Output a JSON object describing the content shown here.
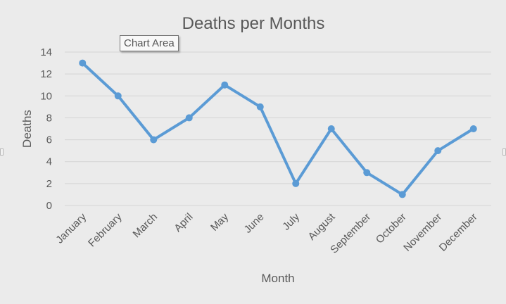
{
  "tooltip": "Chart Area",
  "colors": {
    "series": "#5b9bd5",
    "background": "#ebebeb",
    "grid": "#d4d4d4",
    "text": "#595959",
    "title": "#595959"
  },
  "chart_data": {
    "type": "line",
    "title": "Deaths per Months",
    "xlabel": "Month",
    "ylabel": "Deaths",
    "categories": [
      "January",
      "February",
      "March",
      "April",
      "May",
      "June",
      "July",
      "August",
      "September",
      "October",
      "November",
      "December"
    ],
    "series": [
      {
        "values": [
          13,
          10,
          6,
          8,
          11,
          9,
          2,
          7,
          3,
          1,
          5,
          7
        ]
      }
    ],
    "yticks": [
      "0",
      "2",
      "4",
      "6",
      "8",
      "10",
      "12",
      "14"
    ],
    "ylim": [
      0,
      14
    ],
    "grid": true,
    "markers": true,
    "legend": "none"
  }
}
